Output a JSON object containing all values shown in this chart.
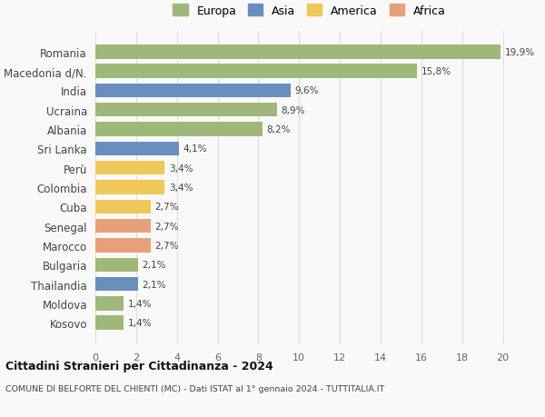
{
  "countries": [
    "Romania",
    "Macedonia d/N.",
    "India",
    "Ucraina",
    "Albania",
    "Sri Lanka",
    "Perù",
    "Colombia",
    "Cuba",
    "Senegal",
    "Marocco",
    "Bulgaria",
    "Thailandia",
    "Moldova",
    "Kosovo"
  ],
  "values": [
    19.9,
    15.8,
    9.6,
    8.9,
    8.2,
    4.1,
    3.4,
    3.4,
    2.7,
    2.7,
    2.7,
    2.1,
    2.1,
    1.4,
    1.4
  ],
  "labels": [
    "19,9%",
    "15,8%",
    "9,6%",
    "8,9%",
    "8,2%",
    "4,1%",
    "3,4%",
    "3,4%",
    "2,7%",
    "2,7%",
    "2,7%",
    "2,1%",
    "2,1%",
    "1,4%",
    "1,4%"
  ],
  "colors": [
    "#9eb87a",
    "#9eb87a",
    "#6a8fbe",
    "#9eb87a",
    "#9eb87a",
    "#6a8fbe",
    "#f0c75a",
    "#f0c75a",
    "#f0c75a",
    "#e8a07a",
    "#e8a07a",
    "#9eb87a",
    "#6a8fbe",
    "#9eb87a",
    "#9eb87a"
  ],
  "continent_colors": {
    "Europa": "#9eb87a",
    "Asia": "#6a8fbe",
    "America": "#f0c75a",
    "Africa": "#e8a07a"
  },
  "xlim": [
    0,
    21
  ],
  "xticks": [
    0,
    2,
    4,
    6,
    8,
    10,
    12,
    14,
    16,
    18,
    20
  ],
  "title1": "Cittadini Stranieri per Cittadinanza - 2024",
  "title2": "COMUNE DI BELFORTE DEL CHIENTI (MC) - Dati ISTAT al 1° gennaio 2024 - TUTTITALIA.IT",
  "background_color": "#f9f9f9",
  "grid_color": "#dddddd",
  "bar_height": 0.72
}
